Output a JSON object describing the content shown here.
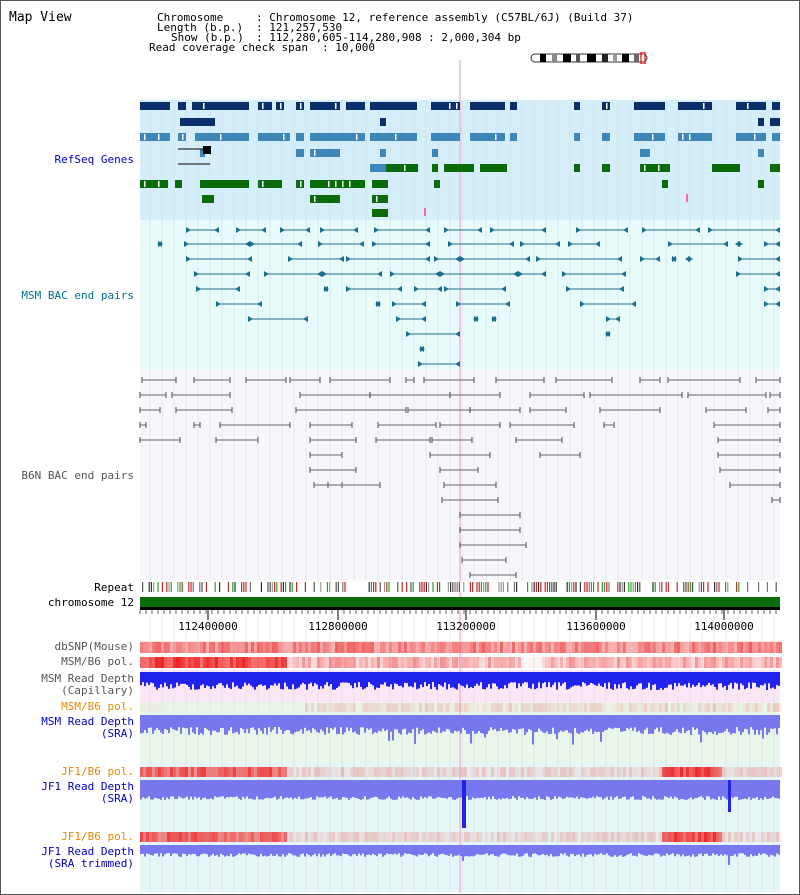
{
  "title": "Map View",
  "header": {
    "chromosome_key": "Chromosome",
    "chromosome_val": ": Chromosome 12, reference assembly (C57BL/6J) (Build 37)",
    "length_key": "Length (b.p.)",
    "length_val": ": 121,257,530",
    "show_key": "Show (b.p.)",
    "show_val": ": 112,280,605-114,280,908 : 2,000,304 bp",
    "coverage_key": "Read coverage check span",
    "coverage_val": ": 10,000"
  },
  "tracks": {
    "refseq": "RefSeq Genes",
    "msm_bac": "MSM BAC end pairs",
    "b6n_bac": "B6N BAC end pairs",
    "repeat": "Repeat",
    "chromosome": "chromosome 12",
    "dbsnp": "dbSNP(Mouse)",
    "msm_b6_pol_1": "MSM/B6 pol.",
    "msm_depth_cap_1": "MSM Read Depth",
    "msm_depth_cap_2": "(Capillary)",
    "msm_b6_pol_2": "MSM/B6 pol.",
    "msm_depth_sra_1": "MSM Read Depth",
    "msm_depth_sra_2": "(SRA)",
    "jf1_pol_1": "JF1/B6 pol.",
    "jf1_depth_sra_1": "JF1 Read Depth",
    "jf1_depth_sra_2": "(SRA)",
    "jf1_pol_2": "JF1/B6 pol.",
    "jf1_depth_trim_1": "JF1 Read Depth",
    "jf1_depth_trim_2": "(SRA trimmed)"
  },
  "axis": {
    "ticks": [
      "112400000",
      "112800000",
      "113200000",
      "113600000",
      "114000000"
    ]
  },
  "colors": {
    "refseq_dark": "#0a2f6b",
    "refseq_mid": "#3d86b8",
    "refseq_green": "#0a6b0a",
    "msm_line": "#1a6f8f",
    "b6n_line": "#666666",
    "depth_blue": "#2222ee",
    "depth_light": "#7777ee",
    "pol_red": "#ee2222",
    "chromosome_green": "#0a6b0a",
    "label_blue": "#0000cc",
    "label_teal": "#006f8f",
    "label_gray": "#555555",
    "label_orange": "#e68a00"
  }
}
